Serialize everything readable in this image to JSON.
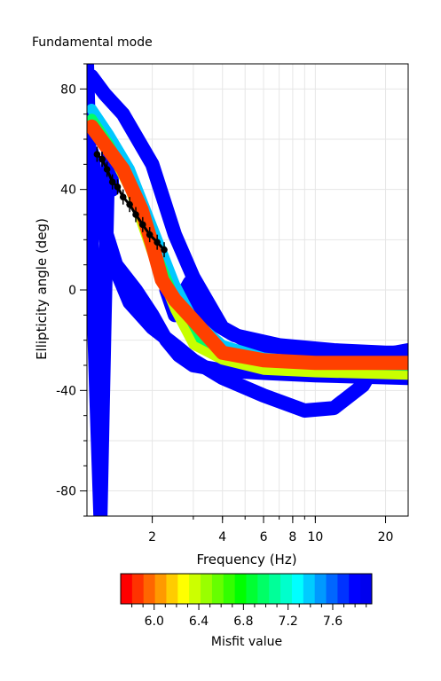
{
  "chart_data": {
    "type": "line",
    "title": "Fundamental mode",
    "xlabel": "Frequency (Hz)",
    "ylabel": "Ellipticity angle (deg)",
    "xscale": "log",
    "xlim": [
      1.05,
      25
    ],
    "ylim": [
      -90,
      90
    ],
    "grid": true,
    "x_ticks": [
      2,
      4,
      6,
      8,
      10,
      20
    ],
    "y_ticks": [
      -80,
      -40,
      0,
      40,
      80
    ],
    "bands": [
      {
        "misfit": 7.9,
        "color": "#0000ff",
        "width": 16,
        "curves": [
          {
            "x": [
              1.1,
              1.25,
              1.5,
              2.0,
              2.5,
              3.0,
              4.0,
              6.0,
              10,
              15,
              25
            ],
            "y": [
              85,
              78,
              70,
              50,
              22,
              5,
              -15,
              -24,
              -27,
              -28,
              -29
            ]
          },
          {
            "x": [
              1.1,
              1.2,
              1.4,
              1.7,
              2.0,
              2.3,
              2.6,
              3.0,
              4.0,
              6.0,
              10,
              25
            ],
            "y": [
              55,
              30,
              10,
              0,
              -10,
              -20,
              -26,
              -30,
              -32,
              -33,
              -34,
              -35
            ]
          },
          {
            "x": [
              1.05,
              1.1,
              1.15,
              1.2,
              1.25,
              1.3,
              1.35
            ],
            "y": [
              90,
              20,
              -40,
              -90,
              -10,
              60,
              40
            ]
          },
          {
            "x": [
              1.1,
              1.3,
              1.6,
              2.0,
              2.5,
              3.0,
              4.0,
              6.0,
              9.0,
              12,
              16,
              19,
              25
            ],
            "y": [
              45,
              15,
              -5,
              -15,
              -22,
              -28,
              -35,
              -42,
              -48,
              -47,
              -38,
              -26,
              -24
            ]
          },
          {
            "x": [
              2.3,
              2.5,
              2.7,
              2.9,
              3.1,
              3.5,
              4.5,
              7.0,
              12,
              20,
              25
            ],
            "y": [
              0,
              -10,
              -2,
              3,
              -6,
              -12,
              -18,
              -22,
              -24,
              -25,
              -25
            ]
          }
        ]
      },
      {
        "misfit": 7.2,
        "color": "#00c8ff",
        "width": 12,
        "curves": [
          {
            "x": [
              1.1,
              1.3,
              1.6,
              2.0,
              2.5,
              3.0,
              4.0,
              6.0,
              10,
              25
            ],
            "y": [
              72,
              62,
              48,
              25,
              2,
              -12,
              -22,
              -27,
              -29,
              -30
            ]
          }
        ]
      },
      {
        "misfit": 6.8,
        "color": "#00ff66",
        "width": 12,
        "curves": [
          {
            "x": [
              1.1,
              1.3,
              1.6,
              2.0,
              2.5,
              3.0,
              4.0,
              6.0,
              10,
              25
            ],
            "y": [
              68,
              58,
              42,
              18,
              -4,
              -18,
              -26,
              -31,
              -32,
              -33
            ]
          }
        ]
      },
      {
        "misfit": 6.2,
        "color": "#c8ff00",
        "width": 10,
        "curves": [
          {
            "x": [
              1.1,
              1.3,
              1.6,
              2.0,
              2.5,
              3.0,
              4.0,
              6.0,
              10,
              25
            ],
            "y": [
              66,
              56,
              40,
              14,
              -8,
              -22,
              -28,
              -32,
              -33,
              -34
            ]
          }
        ]
      },
      {
        "misfit": 5.8,
        "color": "#ff4000",
        "width": 16,
        "curves": [
          {
            "x": [
              1.1,
              1.25,
              1.5,
              1.8,
              2.0,
              2.2,
              2.5,
              3.0,
              4.0,
              6.0,
              10,
              25
            ],
            "y": [
              65,
              58,
              48,
              32,
              18,
              4,
              -4,
              -12,
              -25,
              -28,
              -29,
              -29
            ]
          }
        ]
      }
    ],
    "observed": {
      "color": "#000000",
      "x": [
        1.16,
        1.22,
        1.28,
        1.35,
        1.42,
        1.5,
        1.6,
        1.7,
        1.82,
        1.95,
        2.1,
        2.25
      ],
      "y": [
        54,
        52,
        48,
        43,
        41,
        37,
        34,
        30,
        26,
        22,
        19,
        16
      ]
    },
    "colorbar": {
      "label": "Misfit value",
      "ticks": [
        6.0,
        6.4,
        6.8,
        7.2,
        7.6
      ],
      "tick_labels": [
        "6.0",
        "6.4",
        "6.8",
        "7.2",
        "7.6"
      ],
      "range": [
        5.7,
        7.95
      ],
      "colors": [
        "#ff0000",
        "#ff3300",
        "#ff6600",
        "#ff9900",
        "#ffcc00",
        "#ffff00",
        "#ccff00",
        "#99ff00",
        "#66ff00",
        "#33ff00",
        "#00ff00",
        "#00ff33",
        "#00ff66",
        "#00ff99",
        "#00ffcc",
        "#00ffff",
        "#00ccff",
        "#0099ff",
        "#0066ff",
        "#0033ff",
        "#0000ff",
        "#0000ee"
      ]
    }
  }
}
